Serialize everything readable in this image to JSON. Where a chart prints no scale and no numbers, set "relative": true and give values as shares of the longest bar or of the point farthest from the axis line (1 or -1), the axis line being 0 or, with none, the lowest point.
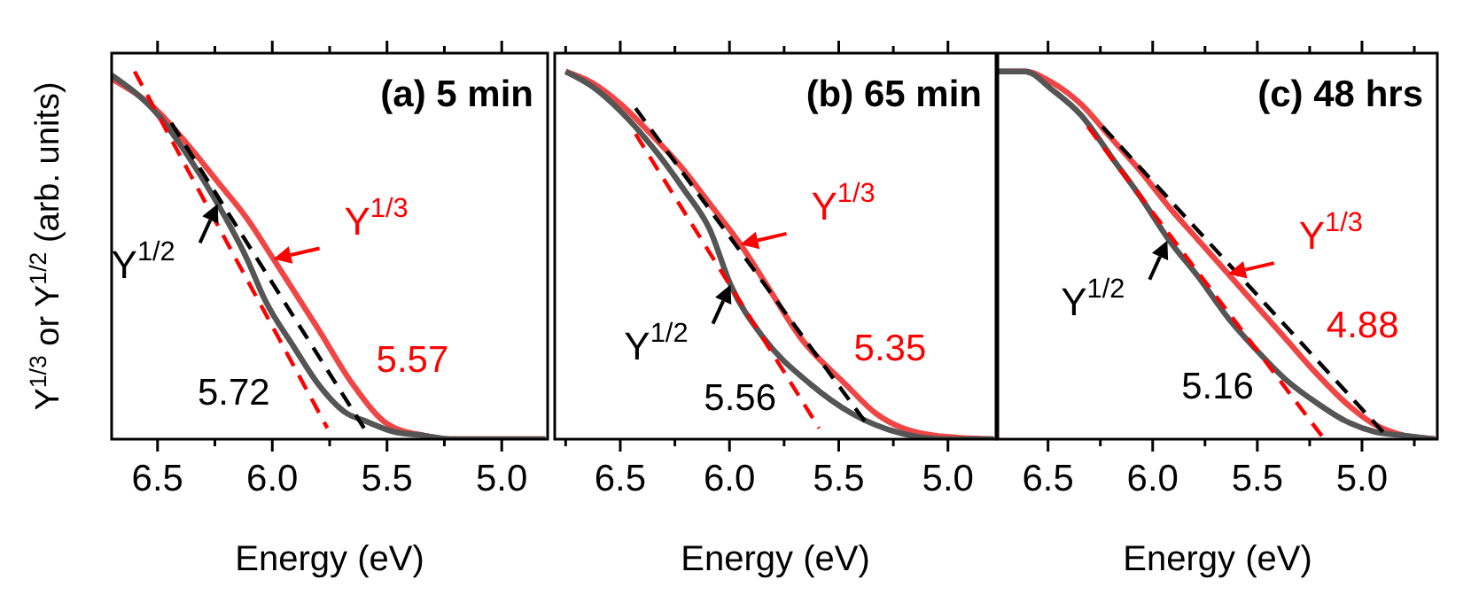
{
  "chart_data": [
    {
      "type": "line",
      "title": "(a) 5 min",
      "xlabel": "Energy (eV)",
      "ylabel": "Y$^{1/3}$ or Y$^{1/2}$ (arb. units)",
      "relative": true,
      "xlim": [
        6.7,
        4.8
      ],
      "xticks": [
        {
          "value": 6.5,
          "label": "6.5"
        },
        {
          "value": 6.25,
          "label": null
        },
        {
          "value": 6.0,
          "label": "6.0"
        },
        {
          "value": 5.75,
          "label": null
        },
        {
          "value": 5.5,
          "label": "5.5"
        },
        {
          "value": 5.25,
          "label": null
        },
        {
          "value": 5.0,
          "label": "5.0"
        }
      ],
      "annotations": [
        {
          "text": "Y$^{1/2}$",
          "x": 6.238,
          "y": 0.64
        },
        {
          "text": "Y$^{1/3}$",
          "x": 5.995,
          "y": 0.49
        },
        "5.72",
        "5.57"
      ],
      "series": [
        {
          "color": "#f04545",
          "line_style": "solid",
          "x": [
            6.7,
            6.495,
            6.367,
            6.238,
            6.11,
            5.995,
            5.8,
            5.65,
            5.495,
            5.34,
            5.21,
            4.81
          ],
          "values": [
            0.98,
            0.89,
            0.8,
            0.7,
            0.6,
            0.49,
            0.3,
            0.15,
            0.04,
            0.01,
            0,
            0
          ]
        },
        {
          "color": "#555555",
          "line_style": "solid",
          "x": [
            6.7,
            6.495,
            6.367,
            6.238,
            6.11,
            6.033,
            5.905,
            5.8,
            5.675,
            5.597,
            5.47,
            5.34,
            5.21,
            4.81
          ],
          "values": [
            0.99,
            0.88,
            0.77,
            0.64,
            0.49,
            0.38,
            0.25,
            0.15,
            0.07,
            0.05,
            0.02,
            0.01,
            0,
            0
          ]
        },
        {
          "color": "#ff0000",
          "line_style": "dashed",
          "x": [
            6.6,
            5.76
          ],
          "values": [
            1.0,
            0.03
          ]
        },
        {
          "color": "#000000",
          "line_style": "dashed",
          "x": [
            6.44,
            5.6
          ],
          "values": [
            0.86,
            0.03
          ]
        }
      ]
    },
    {
      "type": "line",
      "title": "(b) 65 min",
      "xlabel": "Energy (eV)",
      "relative": true,
      "xlim": [
        6.8,
        4.78
      ],
      "xticks": [
        {
          "value": 6.75,
          "label": null
        },
        {
          "value": 6.5,
          "label": "6.5"
        },
        {
          "value": 6.25,
          "label": null
        },
        {
          "value": 6.0,
          "label": "6.0"
        },
        {
          "value": 5.75,
          "label": null
        },
        {
          "value": 5.5,
          "label": "5.5"
        },
        {
          "value": 5.25,
          "label": null
        },
        {
          "value": 5.0,
          "label": "5.0"
        }
      ],
      "annotations": [
        {
          "text": "Y$^{1/2}$",
          "x": 5.995,
          "y": 0.42
        },
        {
          "text": "Y$^{1/3}$",
          "x": 5.95,
          "y": 0.53
        },
        "5.56",
        "5.35"
      ],
      "series": [
        {
          "color": "#f04545",
          "line_style": "solid",
          "x": [
            6.75,
            6.63,
            6.495,
            6.36,
            6.22,
            6.09,
            5.95,
            5.82,
            5.68,
            5.47,
            5.33,
            5.06,
            4.79
          ],
          "values": [
            1,
            0.97,
            0.91,
            0.83,
            0.74,
            0.64,
            0.53,
            0.41,
            0.28,
            0.15,
            0.07,
            0.01,
            0
          ]
        },
        {
          "color": "#555555",
          "line_style": "solid",
          "x": [
            6.75,
            6.63,
            6.495,
            6.36,
            6.21,
            6.09,
            5.995,
            5.85,
            5.63,
            5.44,
            5.17,
            5.01,
            4.79
          ],
          "values": [
            1,
            0.96,
            0.89,
            0.8,
            0.68,
            0.57,
            0.42,
            0.28,
            0.15,
            0.07,
            0.01,
            0,
            0
          ]
        },
        {
          "color": "#ff0000",
          "line_style": "dashed",
          "x": [
            6.43,
            5.59
          ],
          "values": [
            0.83,
            0.03
          ]
        },
        {
          "color": "#000000",
          "line_style": "dashed",
          "x": [
            6.43,
            5.37
          ],
          "values": [
            0.9,
            0.04
          ]
        }
      ]
    },
    {
      "type": "line",
      "title": "(c) 48 hrs",
      "xlabel": "Energy (eV)",
      "relative": true,
      "xlim": [
        6.74,
        4.64
      ],
      "xticks": [
        {
          "value": 6.5,
          "label": "6.5"
        },
        {
          "value": 6.25,
          "label": null
        },
        {
          "value": 6.0,
          "label": "6.0"
        },
        {
          "value": 5.75,
          "label": null
        },
        {
          "value": 5.5,
          "label": "5.5"
        },
        {
          "value": 5.25,
          "label": null
        },
        {
          "value": 5.0,
          "label": "5.0"
        },
        {
          "value": 4.75,
          "label": null
        }
      ],
      "annotations": [
        {
          "text": "Y$^{1/2}$",
          "x": 5.93,
          "y": 0.54
        },
        {
          "text": "Y$^{1/3}$",
          "x": 5.64,
          "y": 0.45
        },
        "5.16",
        "4.88"
      ],
      "series": [
        {
          "color": "#f04545",
          "line_style": "solid",
          "x": [
            6.74,
            6.61,
            6.48,
            6.34,
            6.2,
            6.06,
            5.92,
            5.78,
            5.64,
            5.5,
            5.36,
            5.22,
            5.08,
            4.94,
            4.8,
            4.65
          ],
          "values": [
            1,
            1,
            0.97,
            0.91,
            0.82,
            0.73,
            0.63,
            0.54,
            0.45,
            0.36,
            0.27,
            0.18,
            0.1,
            0.04,
            0.01,
            0
          ]
        },
        {
          "color": "#555555",
          "line_style": "solid",
          "x": [
            6.74,
            6.61,
            6.48,
            6.34,
            6.2,
            6.06,
            5.92,
            5.78,
            5.64,
            5.5,
            5.36,
            5.22,
            5.08,
            4.94,
            4.8,
            4.65
          ],
          "values": [
            1,
            1,
            0.95,
            0.88,
            0.77,
            0.66,
            0.54,
            0.44,
            0.33,
            0.24,
            0.16,
            0.1,
            0.05,
            0.02,
            0.01,
            0
          ]
        },
        {
          "color": "#ff0000",
          "line_style": "dashed",
          "x": [
            6.31,
            5.18
          ],
          "values": [
            0.85,
            0
          ]
        },
        {
          "color": "#000000",
          "line_style": "dashed",
          "x": [
            6.24,
            4.9
          ],
          "values": [
            0.85,
            0.02
          ]
        }
      ]
    }
  ]
}
